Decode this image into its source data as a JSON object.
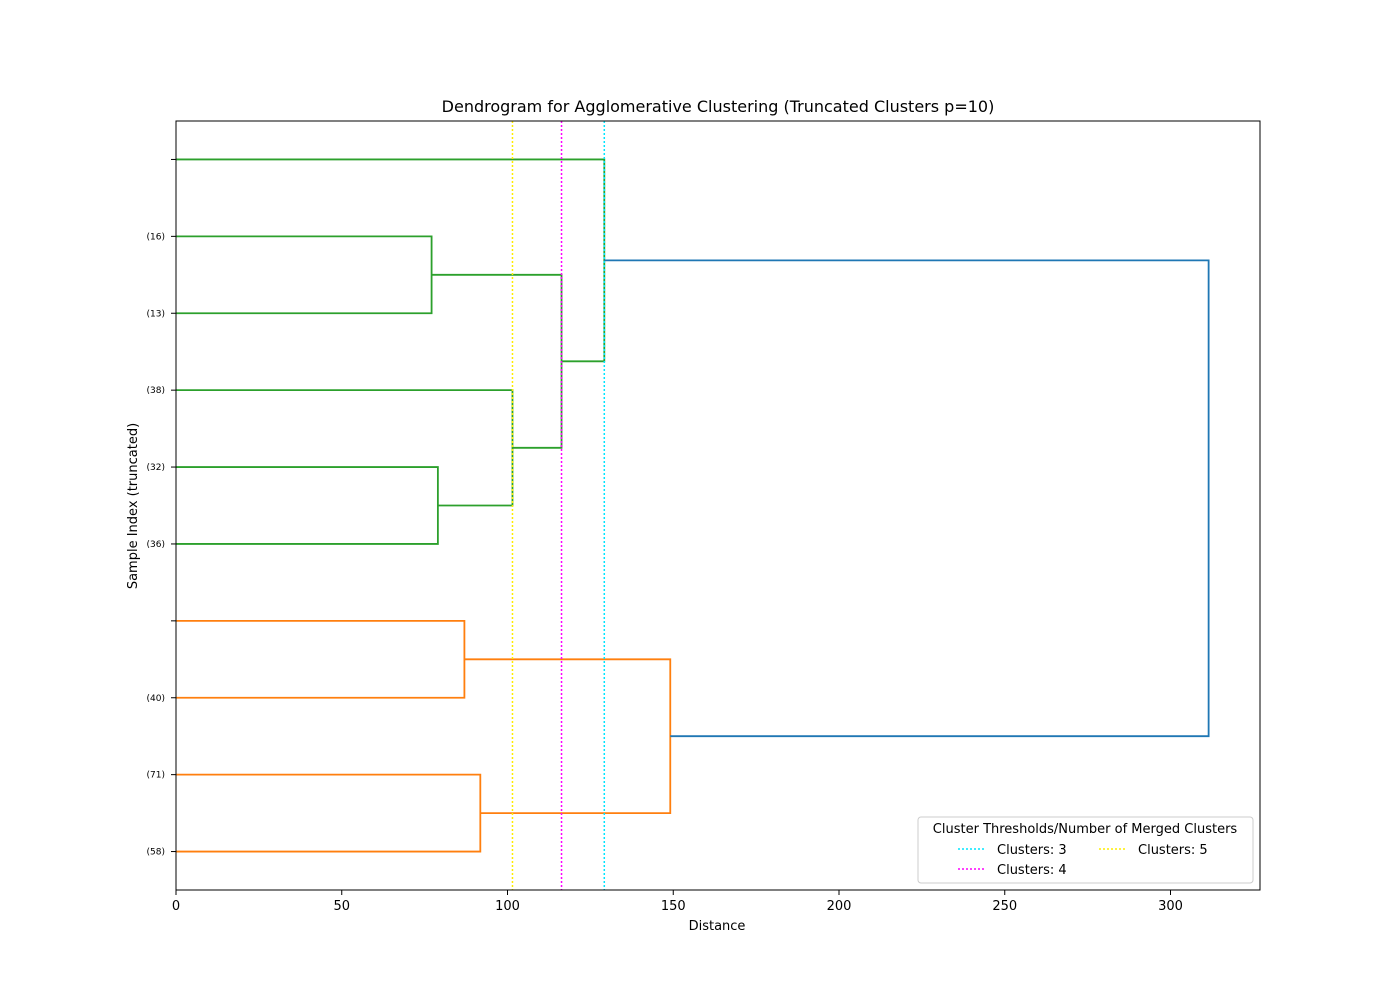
{
  "chart_data": {
    "type": "dendrogram",
    "orientation": "horizontal",
    "title": "Dendrogram for Agglomerative Clustering (Truncated Clusters p=10)",
    "xlabel": "Distance",
    "ylabel": "Sample Index (truncated)",
    "xlim": [
      0,
      327
    ],
    "x_ticks": [
      0,
      50,
      100,
      150,
      200,
      250,
      300
    ],
    "leaf_labels": [
      "",
      "(16)",
      "(13)",
      "(38)",
      "(32)",
      "(36)",
      "",
      "(40)",
      "(71)",
      "(58)"
    ],
    "links": [
      {
        "leaves": [
          1,
          2
        ],
        "height": 77.1,
        "color": "#2ca02c"
      },
      {
        "leaves": [
          4,
          5
        ],
        "height": 79.0,
        "color": "#2ca02c"
      },
      {
        "leaves": [
          3,
          "4+5"
        ],
        "height": 101.5,
        "color": "#2ca02c"
      },
      {
        "leaves": [
          "1+2",
          "3+4+5"
        ],
        "height": 116.3,
        "color": "#2ca02c"
      },
      {
        "leaves": [
          0,
          "1..5"
        ],
        "height": 129.2,
        "color": "#2ca02c"
      },
      {
        "leaves": [
          6,
          7
        ],
        "height": 87.0,
        "color": "#ff7f0e"
      },
      {
        "leaves": [
          8,
          9
        ],
        "height": 91.8,
        "color": "#ff7f0e"
      },
      {
        "leaves": [
          "6+7",
          "8+9"
        ],
        "height": 149.1,
        "color": "#ff7f0e"
      },
      {
        "leaves": [
          "0..5",
          "6..9"
        ],
        "height": 311.5,
        "color": "#1f77b4"
      }
    ],
    "thresholds": [
      {
        "label": "Clusters: 3",
        "x": 129.2,
        "color": "#00e5ff"
      },
      {
        "label": "Clusters: 4",
        "x": 116.3,
        "color": "#ff00ff"
      },
      {
        "label": "Clusters: 5",
        "x": 101.5,
        "color": "#ffee00"
      }
    ],
    "legend": {
      "title": "Cluster Thresholds/Number of Merged Clusters",
      "placement": "lower-right"
    },
    "grid": false
  }
}
